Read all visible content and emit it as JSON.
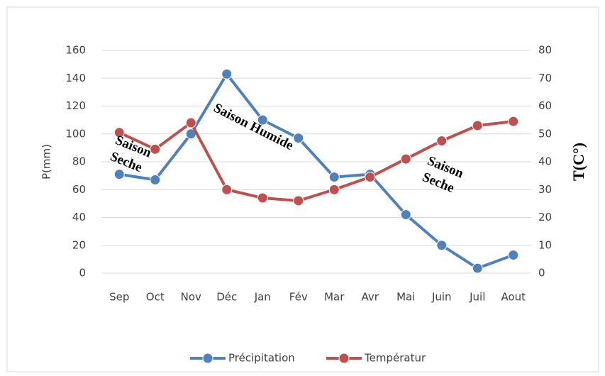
{
  "chart_data": {
    "type": "line",
    "categories": [
      "Sep",
      "Oct",
      "Nov",
      "Déc",
      "Jan",
      "Fév",
      "Mar",
      "Avr",
      "Mai",
      "Juin",
      "Juil",
      "Aout"
    ],
    "series": [
      {
        "name": "Précipitation",
        "color": "#4f81bd",
        "values": [
          71,
          67,
          100,
          143,
          110,
          97,
          69,
          71,
          42,
          20,
          3.5,
          13
        ]
      },
      {
        "name": "Températur",
        "color": "#c0504d",
        "axis": "y2",
        "values": [
          50.5,
          44.5,
          54,
          30,
          27,
          26,
          30,
          34.5,
          41,
          47.5,
          53,
          54.5
        ]
      }
    ],
    "ylabel": "P(mm)",
    "y2label": "T(C°)",
    "ylim": [
      0,
      160
    ],
    "yticks": [
      0,
      20,
      40,
      60,
      80,
      100,
      120,
      140,
      160
    ],
    "y2lim": [
      0,
      80
    ],
    "y2ticks": [
      0,
      10,
      20,
      30,
      40,
      50,
      60,
      70,
      80
    ],
    "grid": true,
    "legend": "bottom",
    "annotations": [
      [
        "Saison",
        "Seche"
      ],
      [
        "Saison Humide"
      ],
      [
        "Saison",
        "Seche"
      ]
    ]
  }
}
